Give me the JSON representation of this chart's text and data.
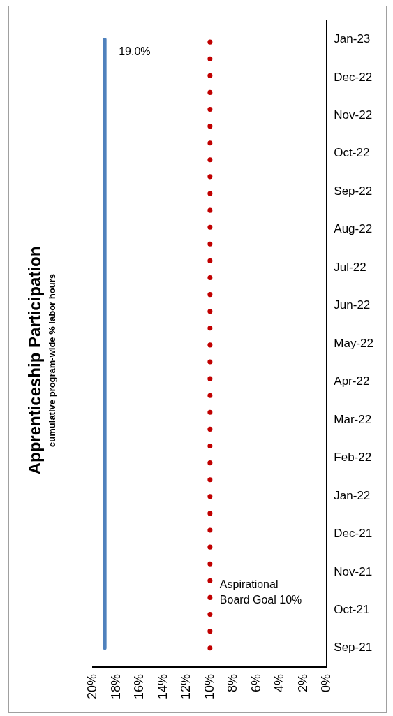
{
  "chart_data": {
    "type": "line",
    "orientation": "horizontal",
    "title": "Apprenticeship Participation",
    "subtitle": "cumulative program-wide % labor hours",
    "categories": [
      "Jan-23",
      "Dec-22",
      "Nov-22",
      "Oct-22",
      "Sep-22",
      "Aug-22",
      "Jul-22",
      "Jun-22",
      "May-22",
      "Apr-22",
      "Mar-22",
      "Feb-22",
      "Jan-22",
      "Dec-21",
      "Nov-21",
      "Oct-21",
      "Sep-21"
    ],
    "series": [
      {
        "color": "#4f81bd",
        "values": [
          19.0,
          19.0,
          19.0,
          19.0,
          19.0,
          19.0,
          19.0,
          19.0,
          19.0,
          19.0,
          19.0,
          19.0,
          19.0,
          19.0,
          19.0,
          19.0,
          19.0
        ],
        "value_labels": [
          "19.0%",
          null,
          null,
          null,
          null,
          null,
          null,
          null,
          null,
          null,
          null,
          null,
          null,
          null,
          null,
          null,
          null
        ]
      }
    ],
    "ref_lines": [
      {
        "axis": "x",
        "value": 10,
        "label": "Aspirational\nBoard Goal 10%",
        "color": "#c00000",
        "line_style": "dotted"
      }
    ],
    "xlim": [
      20,
      0
    ],
    "xticks": [
      {
        "value": 20,
        "label": "20%"
      },
      {
        "value": 18,
        "label": "18%"
      },
      {
        "value": 16,
        "label": "16%"
      },
      {
        "value": 14,
        "label": "14%"
      },
      {
        "value": 12,
        "label": "12%"
      },
      {
        "value": 10,
        "label": "10%"
      },
      {
        "value": 8,
        "label": "8%"
      },
      {
        "value": 6,
        "label": "6%"
      },
      {
        "value": 4,
        "label": "4%"
      },
      {
        "value": 2,
        "label": "2%"
      },
      {
        "value": 0,
        "label": "0%"
      }
    ],
    "grid": false,
    "legend": false,
    "marker": "none",
    "line_style": "solid"
  }
}
